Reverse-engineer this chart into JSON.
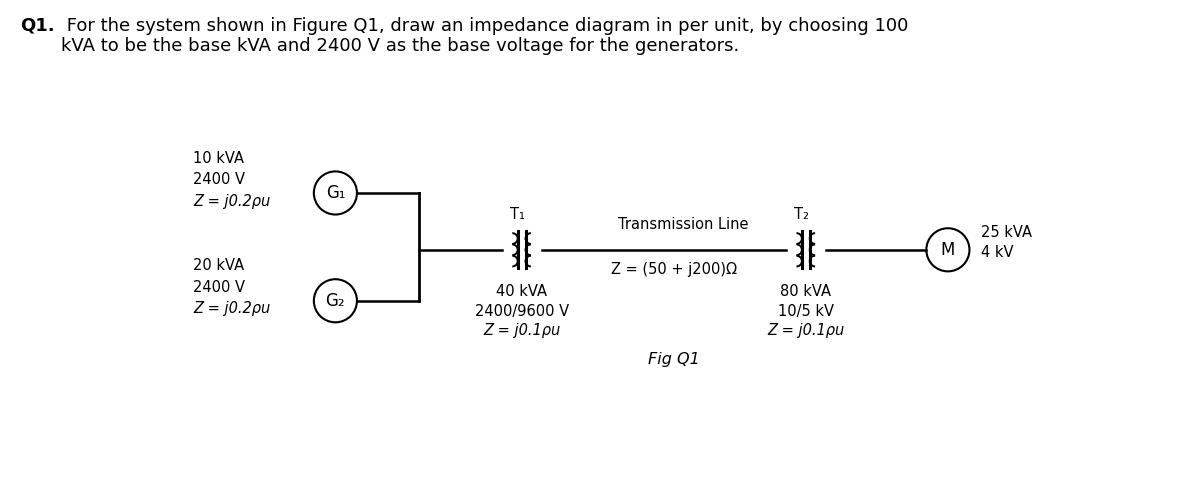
{
  "title_bold": "Q1.",
  "title_rest": " For the system shown in Figure Q1, draw an impedance diagram in per unit, by choosing 100\nkVA to be the base kVA and 2400 V as the base voltage for the generators.",
  "bg_color": "#ffffff",
  "text_color": "#000000",
  "fig_caption": "Fig Q1",
  "g1_label": "G₁",
  "g1_info": [
    "10 kVA",
    "2400 V",
    "Z = j0.2ρu"
  ],
  "g2_label": "G₂",
  "g2_info": [
    "20 kVA",
    "2400 V",
    "Z = j0.2ρu"
  ],
  "t1_label": "T₁",
  "t1_info": [
    "40 kVA",
    "2400/9600 V",
    "Z = j0.1ρu"
  ],
  "t2_label": "T₂",
  "t2_info": [
    "80 kVA",
    "10/5 kV",
    "Z = j0.1ρu"
  ],
  "m_label": "M",
  "m_info": [
    "25 kVA",
    "4 kV"
  ],
  "tline_label": "Transmission Line",
  "tline_z": "Z = (50 + j200)Ω",
  "font_size": 12,
  "small_font": 10.5,
  "title_font": 13
}
